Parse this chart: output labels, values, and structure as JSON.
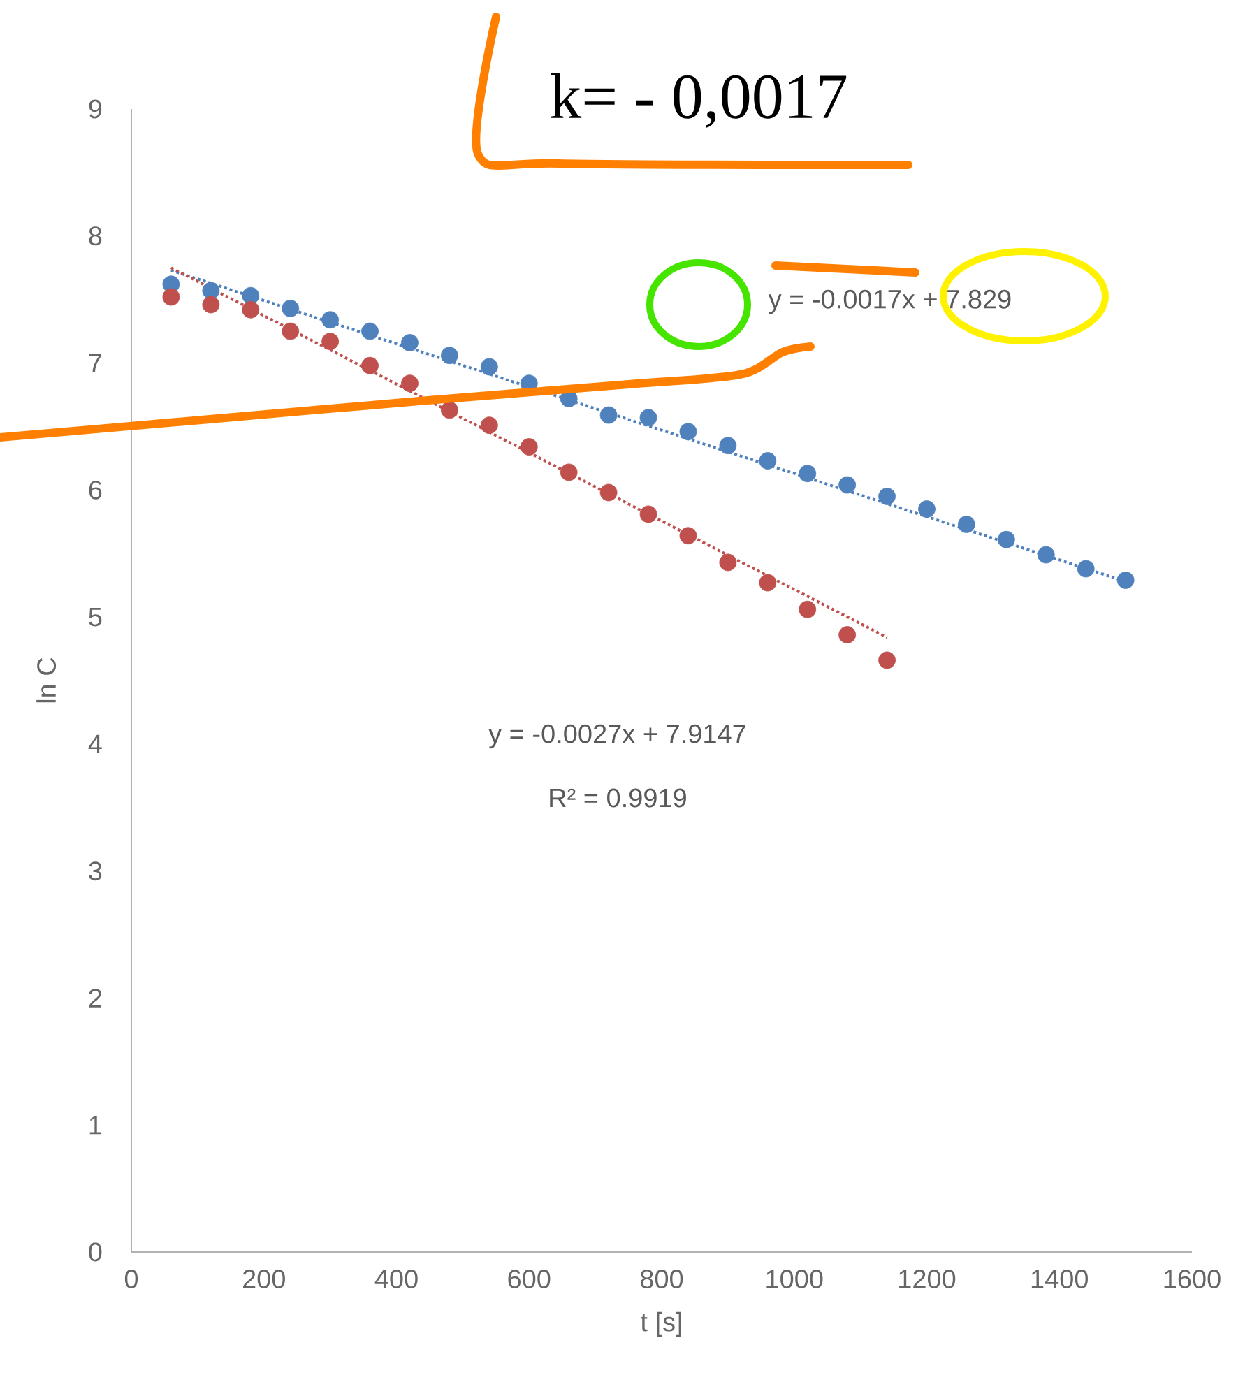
{
  "chart_data": {
    "type": "scatter",
    "xlabel": "t [s]",
    "ylabel": "ln C",
    "xlim": [
      0,
      1600
    ],
    "ylim": [
      0,
      9
    ],
    "xticks": [
      0,
      200,
      400,
      600,
      800,
      1000,
      1200,
      1400,
      1600
    ],
    "yticks": [
      0,
      1,
      2,
      3,
      4,
      5,
      6,
      7,
      8,
      9
    ],
    "marker": "circle",
    "series": [
      {
        "color": "#4f81bd",
        "x": [
          60,
          120,
          180,
          240,
          300,
          360,
          420,
          480,
          540,
          600,
          660,
          720,
          780,
          840,
          900,
          960,
          1020,
          1080,
          1140,
          1200,
          1260,
          1320,
          1380,
          1440,
          1500
        ],
        "values": [
          7.62,
          7.57,
          7.53,
          7.43,
          7.34,
          7.25,
          7.16,
          7.06,
          6.97,
          6.84,
          6.72,
          6.59,
          6.57,
          6.46,
          6.35,
          6.23,
          6.13,
          6.04,
          5.95,
          5.85,
          5.73,
          5.61,
          5.49,
          5.38,
          5.29
        ]
      },
      {
        "color": "#c0504d",
        "x": [
          60,
          120,
          180,
          240,
          300,
          360,
          420,
          480,
          540,
          600,
          660,
          720,
          780,
          840,
          900,
          960,
          1020,
          1080,
          1140
        ],
        "values": [
          7.52,
          7.46,
          7.42,
          7.25,
          7.17,
          6.98,
          6.84,
          6.63,
          6.51,
          6.34,
          6.14,
          5.98,
          5.81,
          5.64,
          5.43,
          5.27,
          5.06,
          4.86,
          4.66
        ]
      },
      {
        "type": "line",
        "line_style": "dotted",
        "marker": "none",
        "color": "#4f81bd",
        "x": [
          60,
          1500
        ],
        "values": [
          7.73,
          5.28
        ]
      },
      {
        "type": "line",
        "line_style": "dotted",
        "marker": "none",
        "color": "#c0504d",
        "x": [
          60,
          1140
        ],
        "values": [
          7.75,
          4.84
        ]
      }
    ],
    "annotations": [
      "k= - 0,0017",
      "y = -0.0017x + 7.829",
      "y = -0.0027x + 7.9147",
      "R² = 0.9919"
    ]
  }
}
